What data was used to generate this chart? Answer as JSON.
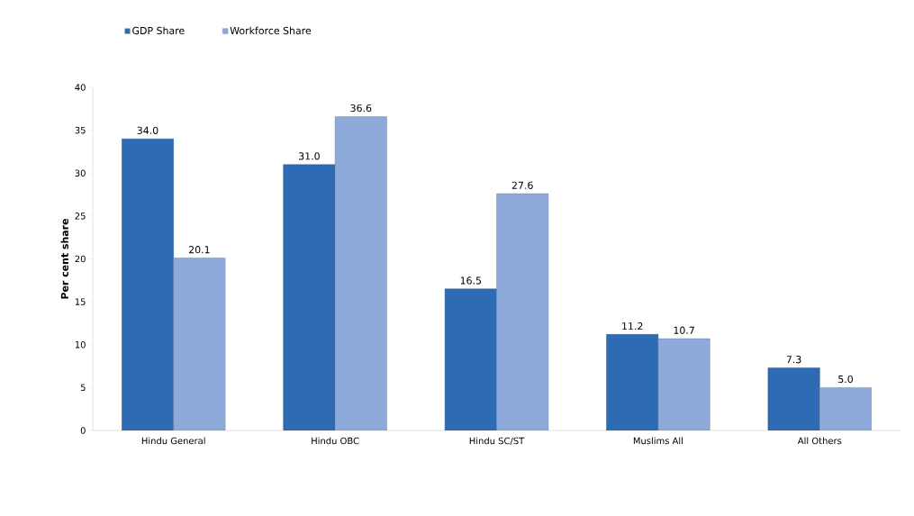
{
  "chart_data": {
    "type": "bar",
    "categories": [
      "Hindu General",
      "Hindu OBC",
      "Hindu SC/ST",
      "Muslims All",
      "All Others"
    ],
    "ylabel": "Per cent share",
    "ylim": [
      0,
      40
    ],
    "yticks": [
      0,
      5,
      10,
      15,
      20,
      25,
      30,
      35,
      40
    ],
    "legend": "top left",
    "grid": false,
    "series": [
      {
        "name": "GDP Share",
        "color": "#2e6bb5",
        "values": [
          34.0,
          31.0,
          16.5,
          11.2,
          7.3
        ],
        "value_labels": [
          "34.0",
          "31.0",
          "16.5",
          "11.2",
          "7.3"
        ]
      },
      {
        "name": "Workforce Share",
        "color": "#8eaadb",
        "values": [
          20.1,
          36.6,
          27.6,
          10.7,
          5.0
        ],
        "value_labels": [
          "20.1",
          "36.6",
          "27.6",
          "10.7",
          "5.0"
        ]
      }
    ]
  }
}
